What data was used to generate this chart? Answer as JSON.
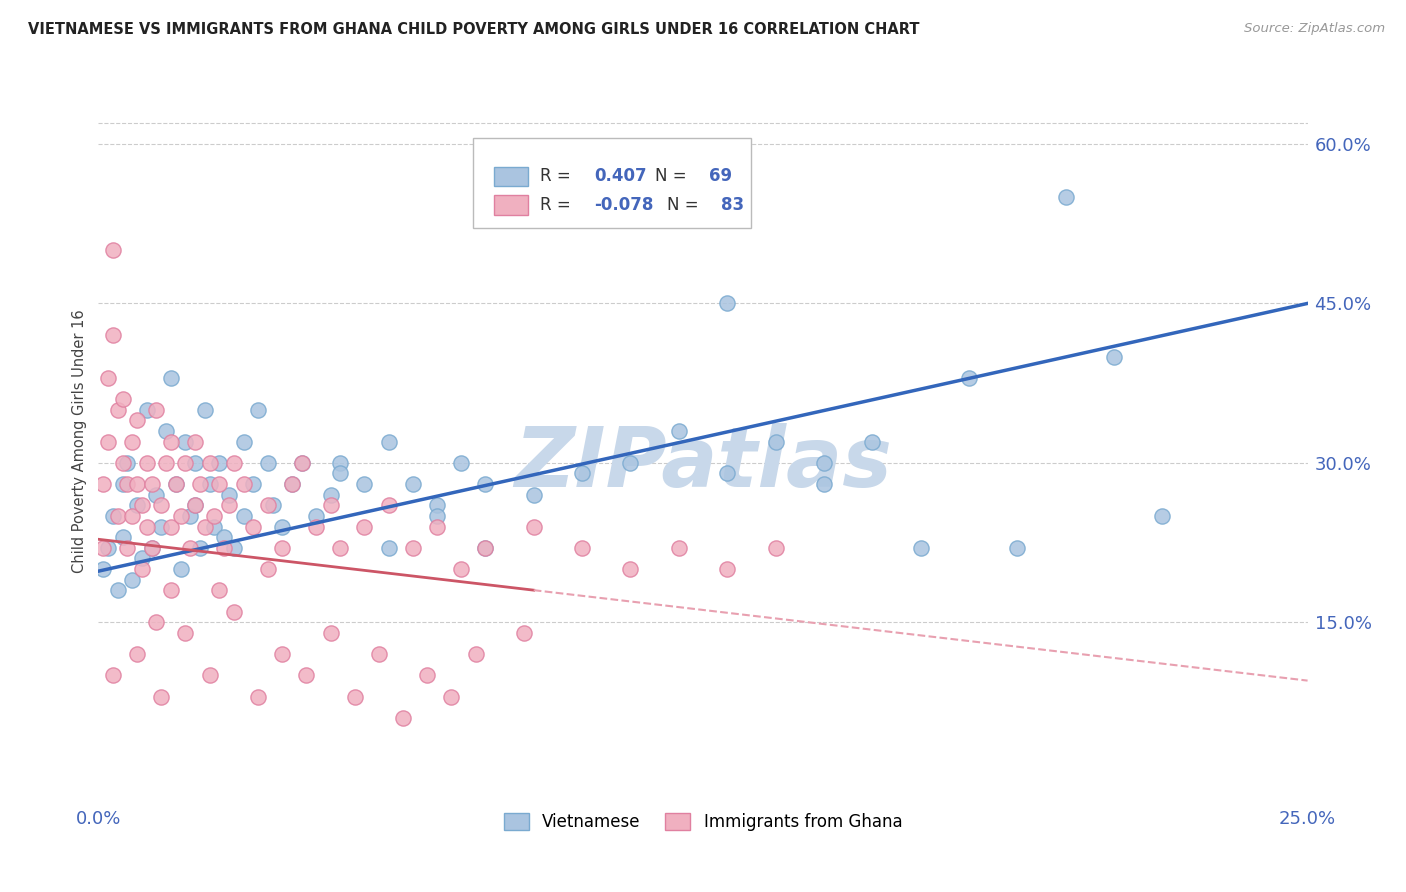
{
  "title": "VIETNAMESE VS IMMIGRANTS FROM GHANA CHILD POVERTY AMONG GIRLS UNDER 16 CORRELATION CHART",
  "source": "Source: ZipAtlas.com",
  "ylabel": "Child Poverty Among Girls Under 16",
  "xlim": [
    0.0,
    0.25
  ],
  "ylim": [
    -0.02,
    0.66
  ],
  "yticks": [
    0.15,
    0.3,
    0.45,
    0.6
  ],
  "ytick_labels": [
    "15.0%",
    "30.0%",
    "45.0%",
    "60.0%"
  ],
  "xticks": [
    0.0,
    0.05,
    0.1,
    0.15,
    0.2,
    0.25
  ],
  "xtick_labels": [
    "0.0%",
    "",
    "",
    "",
    "",
    "25.0%"
  ],
  "blue_color": "#aac4e0",
  "blue_edge_color": "#7aaad0",
  "pink_color": "#f0b0c0",
  "pink_edge_color": "#e080a0",
  "trend_blue": "#3366bb",
  "trend_pink": "#cc5566",
  "trend_pink_dash": "#e8a0b0",
  "legend_R_blue": "0.407",
  "legend_N_blue": "69",
  "legend_R_pink": "-0.078",
  "legend_N_pink": "83",
  "legend_label_blue": "Vietnamese",
  "legend_label_pink": "Immigrants from Ghana",
  "watermark": "ZIPatlas",
  "watermark_color": "#c8d8ea",
  "background_color": "#ffffff",
  "grid_color": "#cccccc",
  "title_color": "#222222",
  "axis_label_color": "#444444",
  "tick_color": "#4466bb",
  "blue_scatter_x": [
    0.001,
    0.002,
    0.003,
    0.004,
    0.005,
    0.005,
    0.006,
    0.007,
    0.008,
    0.009,
    0.01,
    0.011,
    0.012,
    0.013,
    0.014,
    0.015,
    0.016,
    0.017,
    0.018,
    0.019,
    0.02,
    0.02,
    0.021,
    0.022,
    0.023,
    0.024,
    0.025,
    0.026,
    0.027,
    0.028,
    0.03,
    0.03,
    0.032,
    0.033,
    0.035,
    0.036,
    0.038,
    0.04,
    0.042,
    0.045,
    0.048,
    0.05,
    0.055,
    0.06,
    0.065,
    0.07,
    0.075,
    0.08,
    0.09,
    0.1,
    0.11,
    0.12,
    0.13,
    0.14,
    0.15,
    0.16,
    0.13,
    0.15,
    0.1,
    0.18,
    0.2,
    0.22,
    0.19,
    0.21,
    0.17,
    0.05,
    0.06,
    0.07,
    0.08
  ],
  "blue_scatter_y": [
    0.2,
    0.22,
    0.25,
    0.18,
    0.23,
    0.28,
    0.3,
    0.19,
    0.26,
    0.21,
    0.35,
    0.22,
    0.27,
    0.24,
    0.33,
    0.38,
    0.28,
    0.2,
    0.32,
    0.25,
    0.3,
    0.26,
    0.22,
    0.35,
    0.28,
    0.24,
    0.3,
    0.23,
    0.27,
    0.22,
    0.25,
    0.32,
    0.28,
    0.35,
    0.3,
    0.26,
    0.24,
    0.28,
    0.3,
    0.25,
    0.27,
    0.3,
    0.28,
    0.32,
    0.28,
    0.26,
    0.3,
    0.28,
    0.27,
    0.29,
    0.3,
    0.33,
    0.29,
    0.32,
    0.3,
    0.32,
    0.45,
    0.28,
    0.58,
    0.38,
    0.55,
    0.25,
    0.22,
    0.4,
    0.22,
    0.29,
    0.22,
    0.25,
    0.22
  ],
  "pink_scatter_x": [
    0.001,
    0.001,
    0.002,
    0.002,
    0.003,
    0.003,
    0.004,
    0.004,
    0.005,
    0.005,
    0.006,
    0.006,
    0.007,
    0.007,
    0.008,
    0.008,
    0.009,
    0.009,
    0.01,
    0.01,
    0.011,
    0.011,
    0.012,
    0.013,
    0.014,
    0.015,
    0.015,
    0.016,
    0.017,
    0.018,
    0.019,
    0.02,
    0.02,
    0.021,
    0.022,
    0.023,
    0.024,
    0.025,
    0.026,
    0.027,
    0.028,
    0.03,
    0.032,
    0.035,
    0.038,
    0.04,
    0.042,
    0.045,
    0.048,
    0.05,
    0.055,
    0.06,
    0.065,
    0.07,
    0.075,
    0.08,
    0.09,
    0.1,
    0.11,
    0.12,
    0.13,
    0.14,
    0.015,
    0.025,
    0.035,
    0.012,
    0.008,
    0.018,
    0.028,
    0.038,
    0.048,
    0.058,
    0.068,
    0.078,
    0.088,
    0.003,
    0.013,
    0.023,
    0.033,
    0.043,
    0.053,
    0.063,
    0.073
  ],
  "pink_scatter_y": [
    0.22,
    0.28,
    0.32,
    0.38,
    0.42,
    0.5,
    0.35,
    0.25,
    0.3,
    0.36,
    0.28,
    0.22,
    0.32,
    0.25,
    0.28,
    0.34,
    0.26,
    0.2,
    0.24,
    0.3,
    0.28,
    0.22,
    0.35,
    0.26,
    0.3,
    0.32,
    0.24,
    0.28,
    0.25,
    0.3,
    0.22,
    0.26,
    0.32,
    0.28,
    0.24,
    0.3,
    0.25,
    0.28,
    0.22,
    0.26,
    0.3,
    0.28,
    0.24,
    0.26,
    0.22,
    0.28,
    0.3,
    0.24,
    0.26,
    0.22,
    0.24,
    0.26,
    0.22,
    0.24,
    0.2,
    0.22,
    0.24,
    0.22,
    0.2,
    0.22,
    0.2,
    0.22,
    0.18,
    0.18,
    0.2,
    0.15,
    0.12,
    0.14,
    0.16,
    0.12,
    0.14,
    0.12,
    0.1,
    0.12,
    0.14,
    0.1,
    0.08,
    0.1,
    0.08,
    0.1,
    0.08,
    0.06,
    0.08
  ]
}
